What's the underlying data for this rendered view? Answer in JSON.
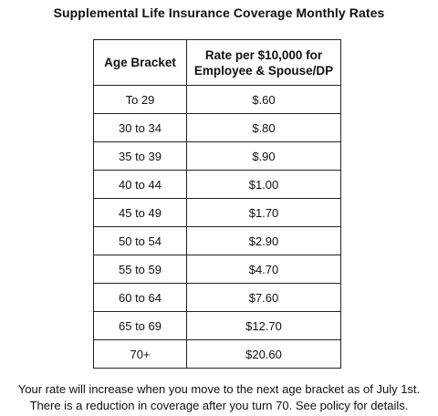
{
  "title": "Supplemental Life Insurance Coverage Monthly Rates",
  "table": {
    "headers": [
      "Age Bracket",
      "Rate per $10,000 for Employee & Spouse/DP"
    ],
    "rows": [
      [
        "To 29",
        "$.60"
      ],
      [
        "30 to 34",
        "$.80"
      ],
      [
        "35 to 39",
        "$.90"
      ],
      [
        "40 to 44",
        "$1.00"
      ],
      [
        "45 to 49",
        "$1.70"
      ],
      [
        "50 to 54",
        "$2.90"
      ],
      [
        "55 to 59",
        "$4.70"
      ],
      [
        "60 to 64",
        "$7.60"
      ],
      [
        "65 to 69",
        "$12.70"
      ],
      [
        "70+",
        "$20.60"
      ]
    ]
  },
  "footnote": [
    "Your rate will increase when you move to the next age bracket as of July 1st.",
    "There is a reduction in coverage after you turn 70. See policy for details."
  ]
}
